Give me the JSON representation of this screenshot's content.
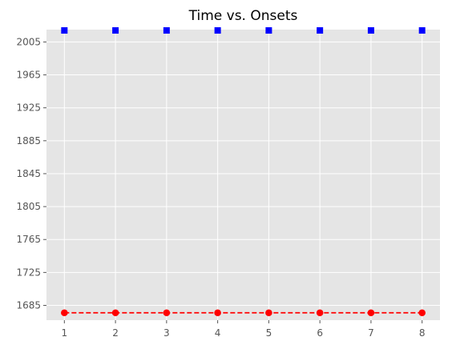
{
  "chart_data": {
    "type": "scatter",
    "title": "Time vs. Onsets",
    "xlabel": "",
    "ylabel": "",
    "xlim": [
      0.65,
      8.35
    ],
    "ylim": [
      1667.0,
      2020.0
    ],
    "x_ticks": [
      1,
      2,
      3,
      4,
      5,
      6,
      7,
      8
    ],
    "y_ticks": [
      1685,
      1725,
      1765,
      1805,
      1845,
      1885,
      1925,
      1965,
      2005
    ],
    "grid": true,
    "legend": "none",
    "background": "#e5e5e5",
    "series": [
      {
        "marker": "square",
        "line": "none",
        "color": "#0000ff",
        "x": [
          1,
          2,
          3,
          4,
          5,
          6,
          7,
          8
        ],
        "y": [
          2019,
          2019,
          2019,
          2019,
          2019,
          2019,
          2019,
          2019
        ]
      },
      {
        "marker": "circle",
        "line": "dashed",
        "color": "#ff0000",
        "x": [
          1,
          2,
          3,
          4,
          5,
          6,
          7,
          8
        ],
        "y": [
          1676,
          1676,
          1676,
          1676,
          1676,
          1676,
          1676,
          1676
        ]
      }
    ]
  }
}
